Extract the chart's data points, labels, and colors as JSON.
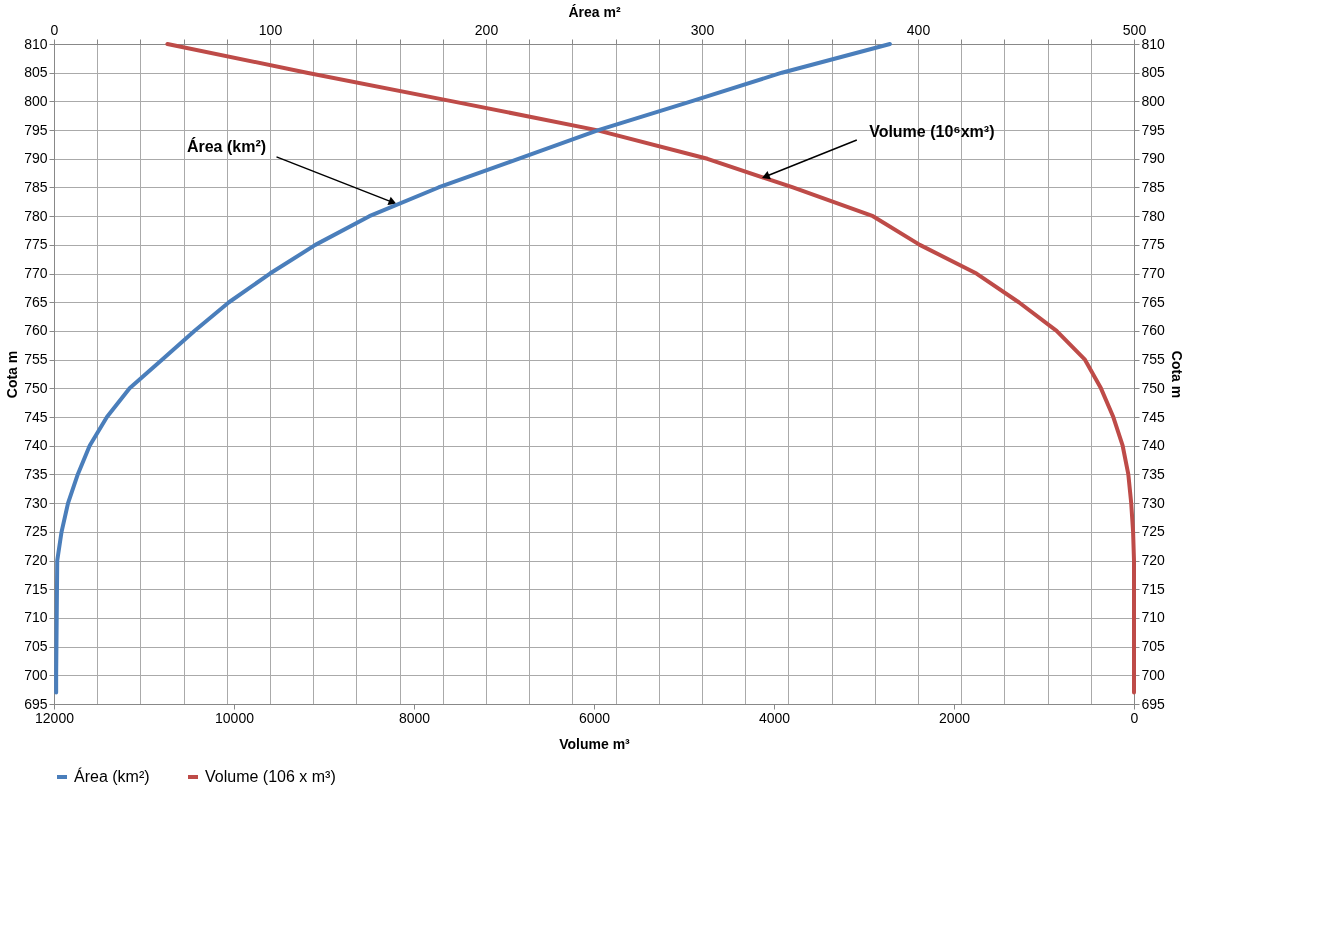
{
  "chart_data": {
    "type": "line",
    "xlabel": "Volume m³",
    "x2label": "Área m²",
    "ylabel": "Cota m",
    "y2label": "Cota m",
    "xlim": [
      12000,
      0
    ],
    "xticks": [
      12000,
      10000,
      8000,
      6000,
      4000,
      2000,
      0
    ],
    "x2lim": [
      0,
      500
    ],
    "x2ticks": [
      0,
      {
        "value": 20,
        "label": null
      },
      {
        "value": 40,
        "label": null
      },
      {
        "value": 60,
        "label": null
      },
      {
        "value": 80,
        "label": null
      },
      100,
      {
        "value": 120,
        "label": null
      },
      {
        "value": 140,
        "label": null
      },
      {
        "value": 160,
        "label": null
      },
      {
        "value": 180,
        "label": null
      },
      200,
      {
        "value": 220,
        "label": null
      },
      {
        "value": 240,
        "label": null
      },
      {
        "value": 260,
        "label": null
      },
      {
        "value": 280,
        "label": null
      },
      300,
      {
        "value": 320,
        "label": null
      },
      {
        "value": 340,
        "label": null
      },
      {
        "value": 360,
        "label": null
      },
      {
        "value": 380,
        "label": null
      },
      400,
      {
        "value": 420,
        "label": null
      },
      {
        "value": 440,
        "label": null
      },
      {
        "value": 460,
        "label": null
      },
      {
        "value": 480,
        "label": null
      },
      500
    ],
    "ylim": [
      695,
      810
    ],
    "yticks": [
      695,
      700,
      705,
      710,
      715,
      720,
      725,
      730,
      735,
      740,
      745,
      750,
      755,
      760,
      765,
      770,
      775,
      780,
      785,
      790,
      795,
      800,
      805,
      810
    ],
    "y2lim": [
      695,
      810
    ],
    "y2ticks": [
      695,
      700,
      705,
      710,
      715,
      720,
      725,
      730,
      735,
      740,
      745,
      750,
      755,
      760,
      765,
      770,
      775,
      780,
      785,
      790,
      795,
      800,
      805,
      810
    ],
    "grid": true,
    "legend": "bottom",
    "series": [
      {
        "name": "Área (km²)",
        "color": "#4a7ebb",
        "axis": "x2",
        "x": [
          1,
          1,
          1.5,
          3.5,
          6.5,
          11,
          16.5,
          24.5,
          35,
          50,
          65,
          81,
          100,
          121,
          146,
          178,
          215,
          252,
          295,
          337,
          387
        ],
        "values": [
          697,
          700,
          720,
          725,
          730,
          735,
          740,
          745,
          750,
          755,
          760,
          765,
          770,
          775,
          780,
          785,
          790,
          795,
          800,
          805,
          810
        ]
      },
      {
        "name": "Volume (106 x m³)",
        "color": "#be4b48",
        "x": [
          0,
          0,
          10,
          31,
          63,
          126,
          230,
          367,
          545,
          860,
          1280,
          1750,
          2380,
          2900,
          3790,
          4740,
          5970,
          7570,
          9190,
          10740
        ],
        "values": [
          697,
          720,
          725,
          730,
          735,
          740,
          745,
          750,
          755,
          760,
          765,
          770,
          775,
          780,
          785,
          790,
          795,
          800,
          805,
          810
        ]
      }
    ],
    "annotations": [
      {
        "text": "Área (km²)",
        "x": 8250,
        "y": 782.5
      },
      {
        "text": "Volume (10⁶xm³)",
        "x": 4080,
        "y": 787
      }
    ]
  }
}
